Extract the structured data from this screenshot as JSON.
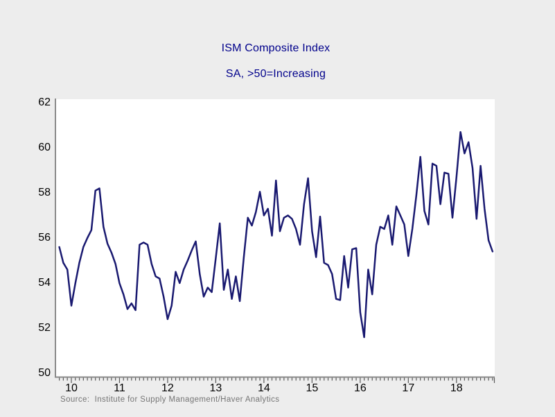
{
  "title": "ISM Composite Index",
  "subtitle": "SA, >50=Increasing",
  "source_note": "Source:  Institute for Supply Management/Haver Analytics",
  "colors": {
    "background": "#ededed",
    "plot_background": "#ffffff",
    "axis": "#8a8a8a",
    "tick": "#595959",
    "line": "#191970",
    "title_text": "#00008b",
    "axis_text": "#000000",
    "source_text": "#757575"
  },
  "chart_data": {
    "type": "line",
    "title": "ISM Composite Index",
    "subtitle": "SA, >50=Increasing",
    "frequency": "monthly",
    "start": "Oct 2009",
    "end": "Oct 2018",
    "xlabel": "",
    "ylabel": "",
    "ylim": [
      50,
      62
    ],
    "grid": false,
    "legend": "none",
    "y_ticks": [
      50,
      52,
      54,
      56,
      58,
      60,
      62
    ],
    "x_tick_labels": [
      "10",
      "11",
      "12",
      "13",
      "14",
      "15",
      "16",
      "17",
      "18"
    ],
    "x_tick_month_offsets": [
      3,
      15,
      27,
      39,
      51,
      63,
      75,
      87,
      99
    ],
    "source": "Source:  Institute for Supply Management/Haver Analytics",
    "values": [
      55.6,
      54.9,
      54.6,
      53.0,
      54.0,
      54.9,
      55.6,
      56.0,
      56.35,
      58.1,
      58.2,
      56.5,
      55.75,
      55.35,
      54.85,
      54.0,
      53.5,
      52.85,
      53.1,
      52.8,
      55.7,
      55.8,
      55.7,
      54.85,
      54.3,
      54.2,
      53.4,
      52.4,
      53.0,
      54.5,
      54.0,
      54.6,
      55.0,
      55.45,
      55.85,
      54.4,
      53.4,
      53.8,
      53.6,
      55.1,
      56.65,
      53.7,
      54.6,
      53.3,
      54.3,
      53.2,
      55.15,
      56.9,
      56.55,
      57.15,
      58.05,
      57.0,
      57.3,
      56.1,
      58.55,
      56.3,
      56.9,
      57.0,
      56.85,
      56.4,
      55.7,
      57.5,
      58.65,
      56.3,
      55.15,
      56.95,
      54.9,
      54.8,
      54.4,
      53.3,
      53.25,
      55.2,
      53.8,
      55.5,
      55.55,
      52.7,
      51.6,
      54.6,
      53.5,
      55.7,
      56.5,
      56.4,
      57.0,
      55.7,
      57.4,
      57.0,
      56.6,
      55.2,
      56.4,
      57.9,
      59.6,
      57.2,
      56.6,
      59.3,
      59.2,
      57.5,
      58.9,
      58.85,
      56.9,
      58.7,
      60.7,
      59.75,
      60.25,
      59.1,
      56.85,
      59.2,
      57.3,
      55.9,
      55.4
    ]
  }
}
